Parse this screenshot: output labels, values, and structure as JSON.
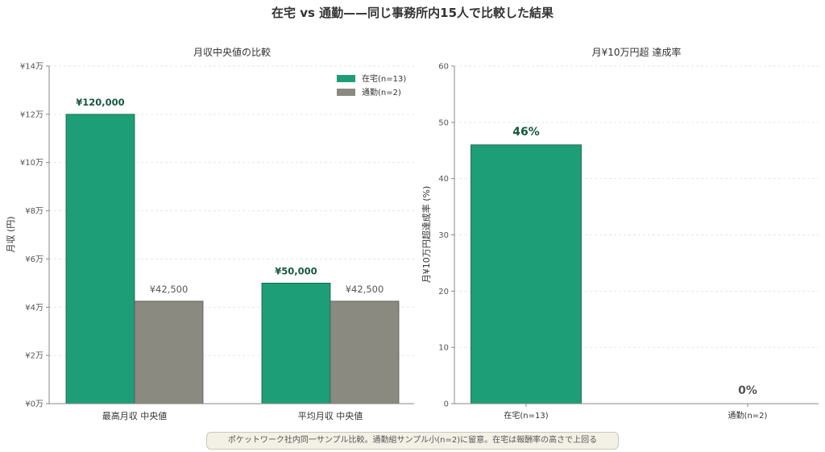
{
  "title": "在宅 vs 通勤——同じ事務所内15人で比較した結果",
  "footnote": "ポケットワーク社内同一サンプル比較。通勤組サンプル小(n=2)に留意。在宅は報酬率の高さで上回る",
  "colors": {
    "home": "#1e9e76",
    "commute": "#8a8a80",
    "home_label": "#17573f",
    "commute_label": "#555555"
  },
  "chart_data": [
    {
      "type": "bar",
      "title": "月収中央値の比較",
      "ylabel": "月収 (円)",
      "xlabel": "",
      "categories": [
        "最高月収 中央値",
        "平均月収 中央値"
      ],
      "series": [
        {
          "name": "在宅(n=13)",
          "values": [
            120000,
            50000
          ],
          "labels": [
            "¥120,000",
            "¥50,000"
          ]
        },
        {
          "name": "通勤(n=2)",
          "values": [
            42500,
            42500
          ],
          "labels": [
            "¥42,500",
            "¥42,500"
          ]
        }
      ],
      "ylim": [
        0,
        140000
      ],
      "yticks": [
        0,
        20000,
        40000,
        60000,
        80000,
        100000,
        120000,
        140000
      ],
      "ytick_labels": [
        "¥0万",
        "¥2万",
        "¥4万",
        "¥6万",
        "¥8万",
        "¥10万",
        "¥12万",
        "¥14万"
      ],
      "legend": "top-right",
      "grid": true
    },
    {
      "type": "bar",
      "title": "月¥10万円超 達成率",
      "ylabel": "月¥10万円超達成率 (%)",
      "xlabel": "",
      "categories": [
        "在宅(n=13)",
        "通勤(n=2)"
      ],
      "values": [
        46,
        0
      ],
      "labels": [
        "46%",
        "0%"
      ],
      "ylim": [
        0,
        60
      ],
      "yticks": [
        0,
        10,
        20,
        30,
        40,
        50,
        60
      ],
      "ytick_labels": [
        "0",
        "10",
        "20",
        "30",
        "40",
        "50",
        "60"
      ],
      "grid": true
    }
  ]
}
